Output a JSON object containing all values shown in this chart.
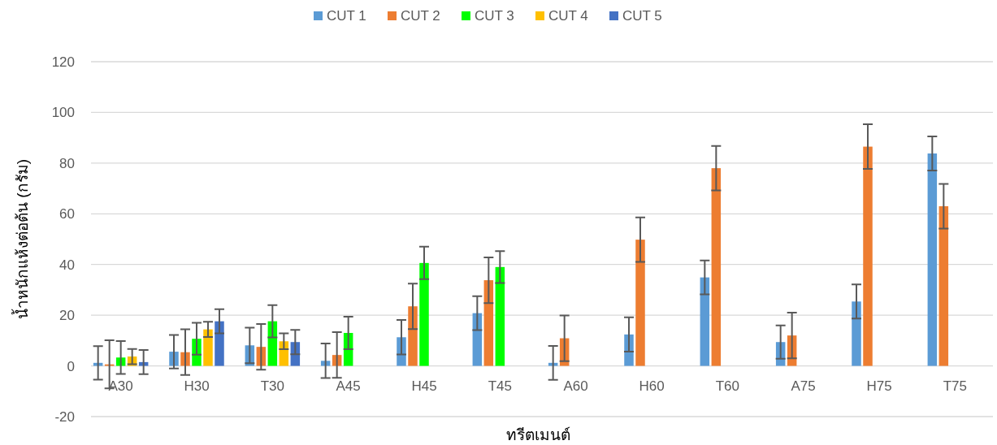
{
  "chart_data": {
    "type": "bar",
    "xlabel": "ทรีตเมนต์",
    "ylabel": "น้ำหนักแห้งต่อต้น (กรัม)",
    "categories": [
      "A30",
      "H30",
      "T30",
      "A45",
      "H45",
      "T45",
      "A60",
      "H60",
      "T60",
      "A75",
      "H75",
      "T75"
    ],
    "ylim": [
      -20,
      120
    ],
    "yticks": [
      -20,
      0,
      20,
      40,
      60,
      80,
      100,
      120
    ],
    "grid": "y",
    "legend": "top",
    "series": [
      {
        "name": "CUT 1",
        "color": "#5b9bd5",
        "values": [
          1.2,
          5.6,
          8.1,
          2,
          11.3,
          20.8,
          1.2,
          12.4,
          34.9,
          9.4,
          25.4,
          83.8
        ],
        "errors": [
          6.6,
          6.6,
          7,
          6.8,
          6.8,
          6.7,
          6.7,
          6.8,
          6.7,
          6.6,
          6.7,
          6.7
        ]
      },
      {
        "name": "CUT 2",
        "color": "#ed7d31",
        "values": [
          0.6,
          5.4,
          7.5,
          4.3,
          23.5,
          33.8,
          10.9,
          49.8,
          78,
          12,
          86.5,
          63
        ],
        "errors": [
          9.5,
          9,
          9,
          9,
          9,
          9,
          9,
          8.8,
          8.8,
          9,
          8.8,
          8.8
        ]
      },
      {
        "name": "CUT 3",
        "color": "#00ff00",
        "values": [
          3.3,
          10.7,
          17.6,
          13,
          40.6,
          39,
          null,
          null,
          null,
          null,
          null,
          null
        ],
        "errors": [
          6.5,
          6.3,
          6.4,
          6.4,
          6.4,
          6.3,
          null,
          null,
          null,
          null,
          null,
          null
        ]
      },
      {
        "name": "CUT 4",
        "color": "#ffc000",
        "values": [
          3.7,
          14.4,
          9.7,
          null,
          null,
          null,
          null,
          null,
          null,
          null,
          null,
          null
        ],
        "errors": [
          3,
          3,
          3.1,
          null,
          null,
          null,
          null,
          null,
          null,
          null,
          null,
          null
        ]
      },
      {
        "name": "CUT 5",
        "color": "#4472c4",
        "values": [
          1.5,
          17.6,
          9.4,
          null,
          null,
          null,
          null,
          null,
          null,
          null,
          null,
          null
        ],
        "errors": [
          4.8,
          4.8,
          4.8,
          null,
          null,
          null,
          null,
          null,
          null,
          null,
          null,
          null
        ]
      }
    ]
  }
}
